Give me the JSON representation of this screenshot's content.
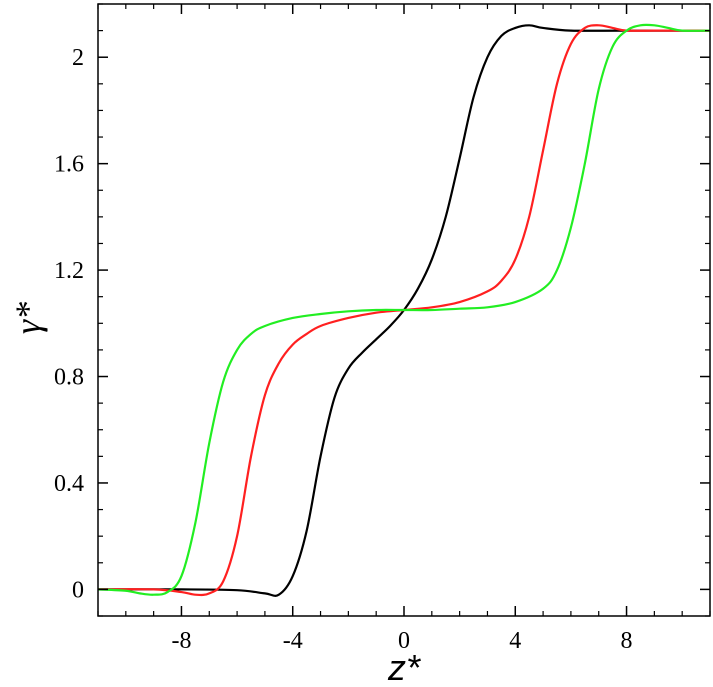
{
  "chart_data": {
    "type": "line",
    "title": "",
    "xlabel": "z*",
    "ylabel": "γ*",
    "xlim": [
      -11,
      11
    ],
    "ylim": [
      -0.1,
      2.2
    ],
    "xticks": [
      -8,
      -4,
      0,
      4,
      8
    ],
    "xtick_labels": [
      "-8",
      "-4",
      "0",
      "4",
      "8"
    ],
    "yticks": [
      0,
      0.4,
      0.8,
      1.2,
      1.6,
      2.0
    ],
    "ytick_labels": [
      "0",
      "0.4",
      "0.8",
      "1.2",
      "1.6",
      "2"
    ],
    "grid": false,
    "legend": "none",
    "series": [
      {
        "color": "#000000",
        "x": [
          -11,
          -8,
          -6,
          -5,
          -4.5,
          -4,
          -3.5,
          -3,
          -2.5,
          -2,
          -1.5,
          -1,
          -0.5,
          0,
          0.5,
          1,
          1.5,
          2,
          2.5,
          3,
          3.5,
          4,
          4.5,
          5,
          6,
          8,
          11
        ],
        "y": [
          0.0,
          0.0,
          -0.003,
          -0.015,
          -0.02,
          0.05,
          0.22,
          0.5,
          0.72,
          0.83,
          0.89,
          0.94,
          0.99,
          1.05,
          1.13,
          1.24,
          1.4,
          1.62,
          1.85,
          2.0,
          2.08,
          2.11,
          2.12,
          2.11,
          2.1,
          2.1,
          2.1
        ]
      },
      {
        "color": "#ff2020",
        "x": [
          -11,
          -9,
          -8,
          -7.5,
          -7,
          -6.5,
          -6,
          -5.5,
          -5,
          -4.5,
          -4,
          -3.5,
          -3,
          -2,
          -1,
          0,
          1,
          2,
          3,
          3.5,
          4,
          4.5,
          5,
          5.5,
          6,
          6.5,
          7,
          7.5,
          8,
          9,
          11
        ],
        "y": [
          0.0,
          0.0,
          -0.01,
          -0.02,
          -0.015,
          0.03,
          0.2,
          0.5,
          0.73,
          0.85,
          0.92,
          0.96,
          0.99,
          1.02,
          1.04,
          1.05,
          1.06,
          1.08,
          1.12,
          1.16,
          1.24,
          1.4,
          1.65,
          1.9,
          2.05,
          2.11,
          2.12,
          2.11,
          2.1,
          2.1,
          2.1
        ]
      },
      {
        "color": "#22ee22",
        "x": [
          -11,
          -10,
          -9.5,
          -9,
          -8.5,
          -8,
          -7.5,
          -7,
          -6.5,
          -6,
          -5.5,
          -5,
          -4,
          -3,
          -2,
          -1,
          0,
          1,
          2,
          3,
          4,
          5,
          5.5,
          6,
          6.5,
          7,
          7.5,
          8,
          8.5,
          9,
          9.5,
          10,
          11
        ],
        "y": [
          0.0,
          -0.005,
          -0.015,
          -0.02,
          -0.01,
          0.05,
          0.25,
          0.55,
          0.78,
          0.9,
          0.96,
          0.99,
          1.02,
          1.035,
          1.045,
          1.05,
          1.05,
          1.05,
          1.055,
          1.06,
          1.08,
          1.13,
          1.2,
          1.36,
          1.6,
          1.88,
          2.04,
          2.1,
          2.12,
          2.12,
          2.11,
          2.1,
          2.1
        ]
      }
    ]
  }
}
